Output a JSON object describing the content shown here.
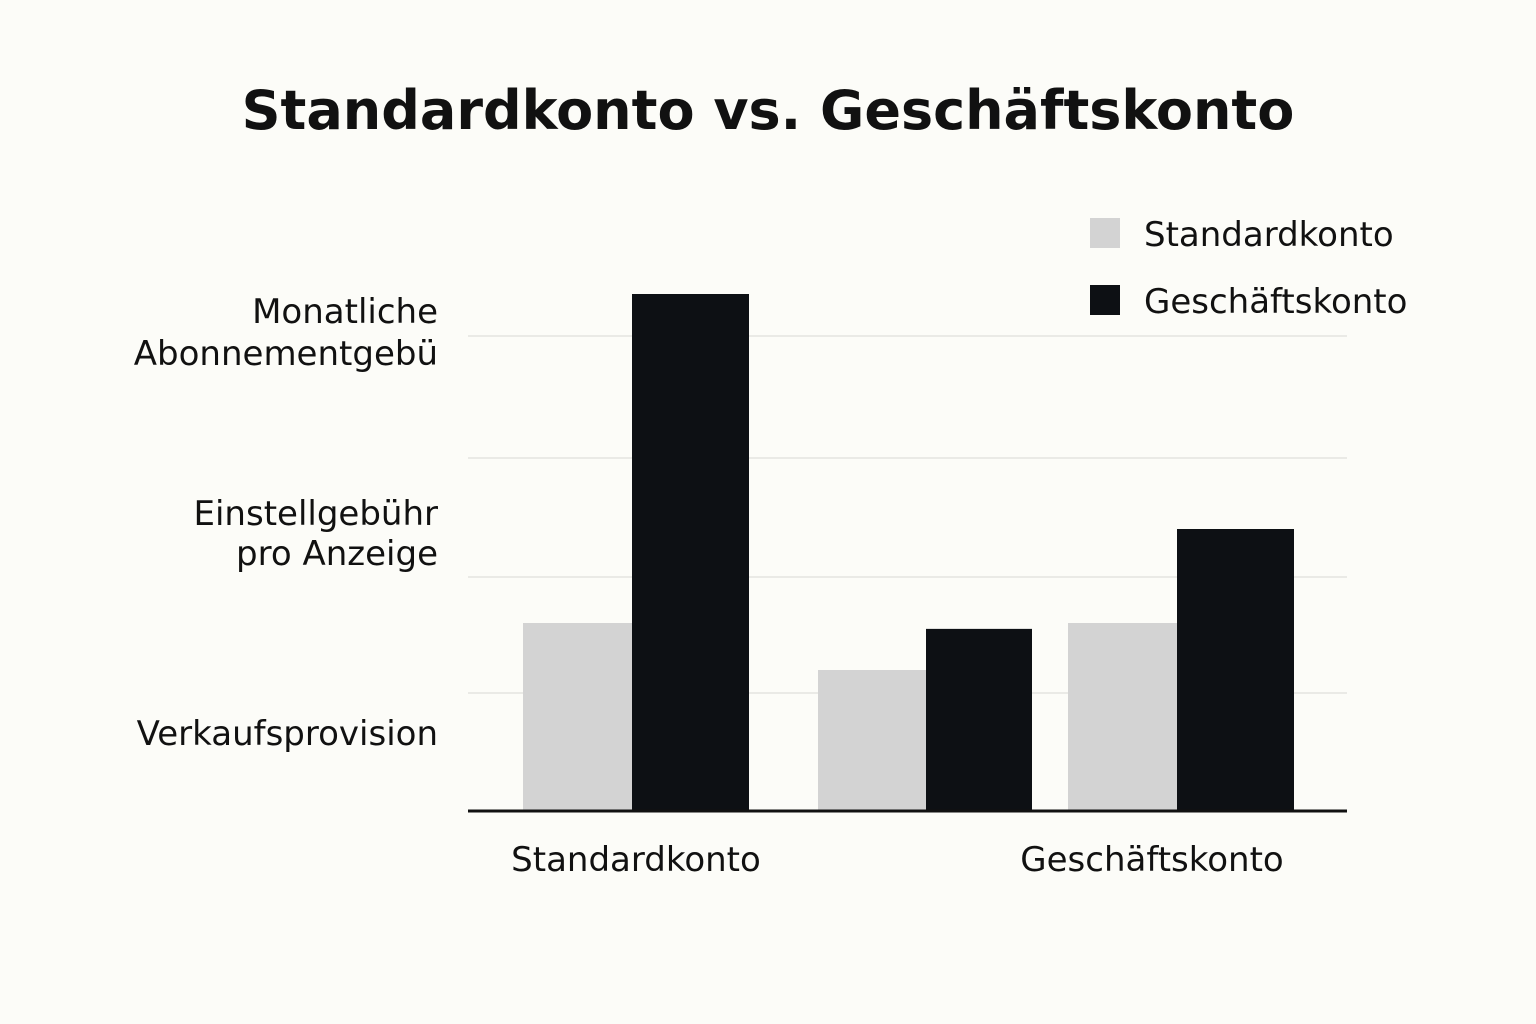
{
  "chart_data": {
    "type": "bar",
    "title": "Standardkonto vs. Geschäftskonto",
    "categories": [
      "Standardkonto",
      "Geschäftskonto"
    ],
    "y_labels": [
      {
        "lines": [
          "Monatliche",
          "Abonnementgebü"
        ]
      },
      {
        "lines": [
          "Einstellgebühr",
          "pro Anzeige"
        ]
      },
      {
        "lines": [
          "Verkaufsprovision"
        ]
      }
    ],
    "series": [
      {
        "name": "Standardkonto",
        "color": "#d3d3d3"
      },
      {
        "name": "Geschäftskonto",
        "color": "#0d1014"
      }
    ],
    "groups": [
      {
        "category": "Standardkonto",
        "values": [
          1.6,
          4.4
        ]
      },
      {
        "category": "",
        "values": [
          1.2,
          1.55
        ]
      },
      {
        "category": "",
        "values": [
          1.6,
          2.4
        ]
      }
    ],
    "ylim": [
      0,
      4.4
    ],
    "grid": true,
    "legend_position": "top-right"
  }
}
